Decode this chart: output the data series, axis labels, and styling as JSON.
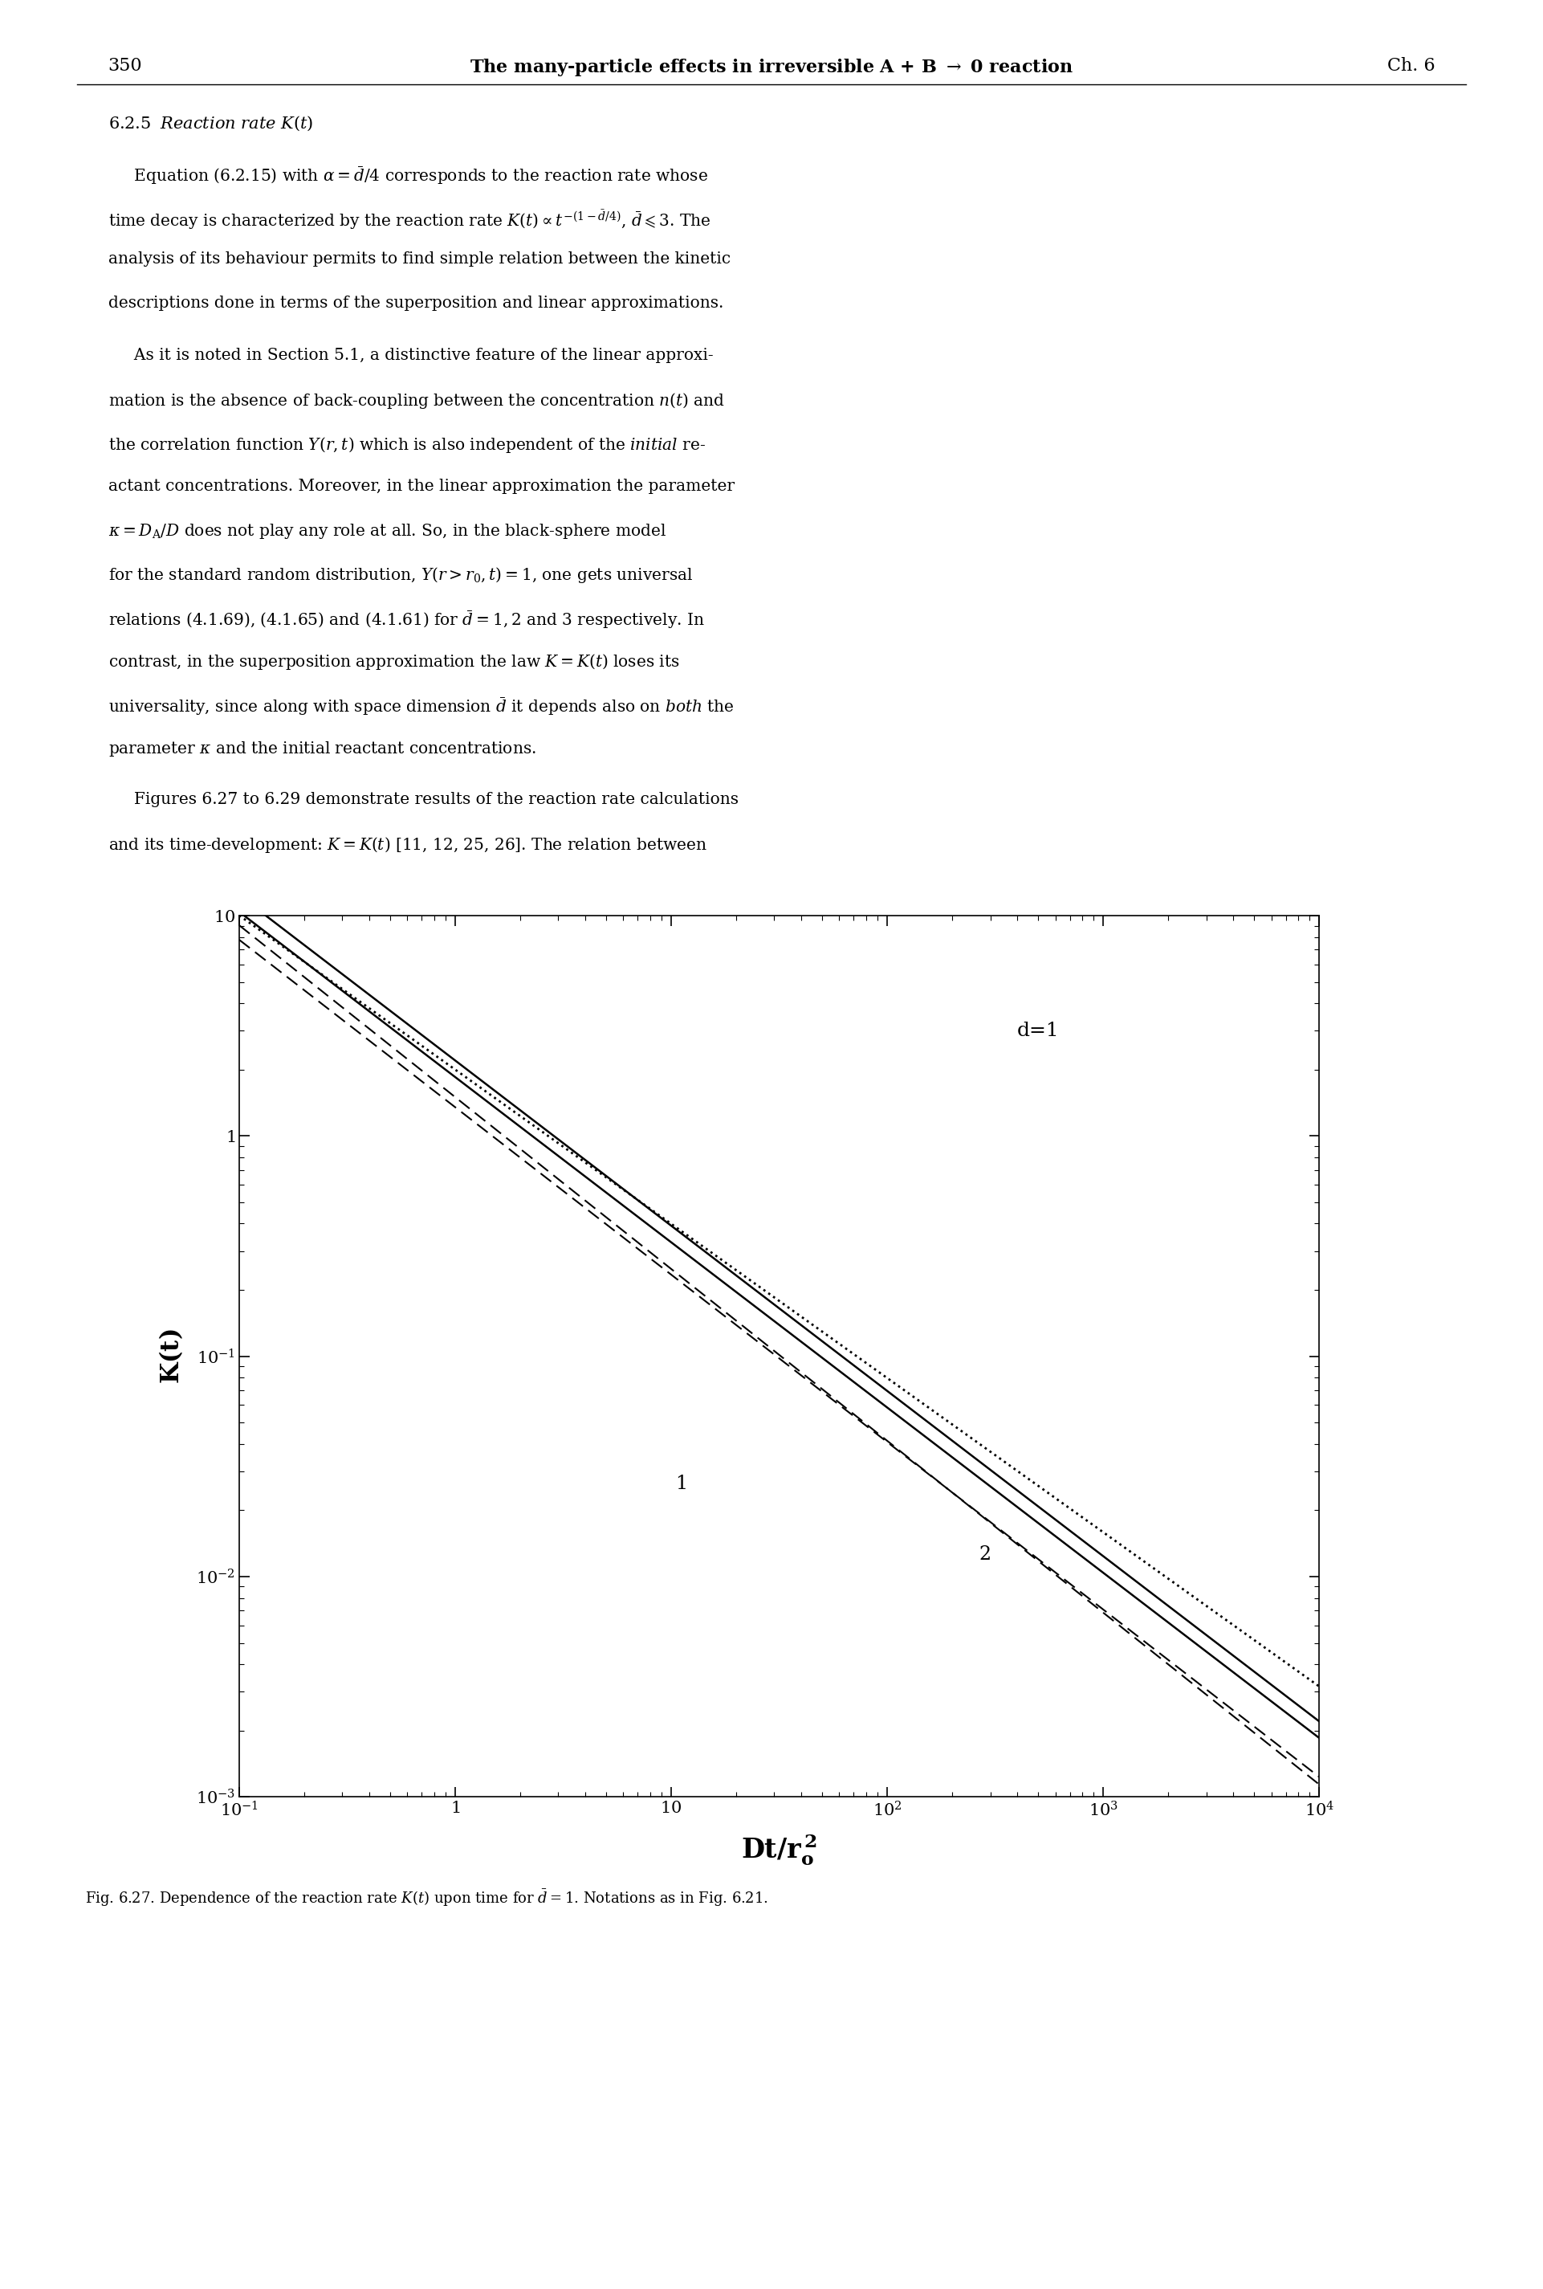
{
  "title_page": "350",
  "title_header": "The many-particle effects in irreversible A + B → 0 reaction",
  "title_chapter": "Ch. 6",
  "section_title": "6.2.5  Reaction rate K(t)",
  "annotation": "d=1",
  "label1": "1",
  "label2": "2",
  "xlim_log": [
    -1,
    4
  ],
  "ylim_log": [
    -3,
    1
  ],
  "fig_caption": "Fig. 6.27. Dependence of the reaction rate K(t) upon time for d̅ = 1. Notations as in Fig. 6.21.",
  "background_color": "#ffffff",
  "line_color": "#000000",
  "exp_solid": 0.75,
  "amp_solid1": 2.2,
  "amp_solid2": 1.85,
  "amp_dashed1": 1.5,
  "exp_dashed1": 0.78,
  "amp_dotted": 2.0,
  "exp_dotted": 0.7,
  "amp_dashed2": 1.35,
  "exp_dashed2": 0.76
}
